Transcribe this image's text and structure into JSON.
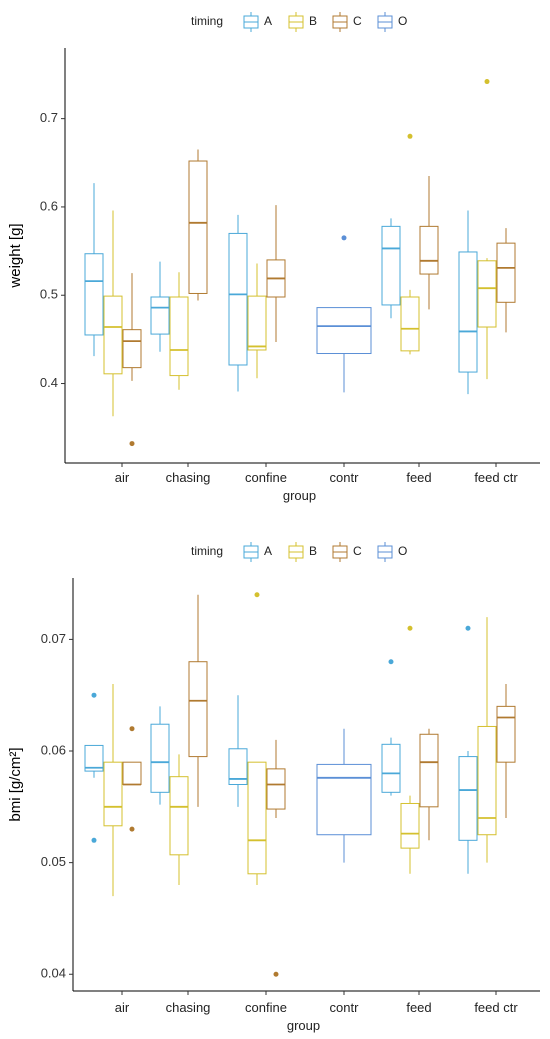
{
  "colors": {
    "A": "#4aa8d8",
    "B": "#d4c02e",
    "C": "#b07a30",
    "O": "#5b8fd6"
  },
  "legend": {
    "title": "timing",
    "keys": [
      "A",
      "B",
      "C",
      "O"
    ],
    "placement": "top"
  },
  "chart_data": [
    {
      "type": "boxplot",
      "xlabel": "group",
      "ylabel": "weight [g]",
      "ylim": [
        0.31,
        0.78
      ],
      "yticks": [
        0.4,
        0.5,
        0.6,
        0.7
      ],
      "ytick_labels": [
        "0.4",
        "0.5",
        "0.6",
        "0.7"
      ],
      "grid": false,
      "categories": [
        "air",
        "chasing",
        "confine",
        "contr",
        "feed",
        "feed ctr"
      ],
      "series": [
        {
          "name": "A",
          "boxes": [
            {
              "cat": "air",
              "lo": 0.431,
              "q1": 0.455,
              "med": 0.516,
              "q3": 0.547,
              "hi": 0.627
            },
            {
              "cat": "chasing",
              "lo": 0.436,
              "q1": 0.456,
              "med": 0.486,
              "q3": 0.498,
              "hi": 0.538
            },
            {
              "cat": "confine",
              "lo": 0.391,
              "q1": 0.421,
              "med": 0.501,
              "q3": 0.57,
              "hi": 0.591
            },
            {
              "cat": "feed",
              "lo": 0.474,
              "q1": 0.489,
              "med": 0.553,
              "q3": 0.578,
              "hi": 0.587
            },
            {
              "cat": "feed ctr",
              "lo": 0.388,
              "q1": 0.413,
              "med": 0.459,
              "q3": 0.549,
              "hi": 0.596
            }
          ]
        },
        {
          "name": "B",
          "boxes": [
            {
              "cat": "air",
              "lo": 0.363,
              "q1": 0.411,
              "med": 0.464,
              "q3": 0.499,
              "hi": 0.596
            },
            {
              "cat": "chasing",
              "lo": 0.393,
              "q1": 0.409,
              "med": 0.438,
              "q3": 0.498,
              "hi": 0.526
            },
            {
              "cat": "confine",
              "lo": 0.406,
              "q1": 0.438,
              "med": 0.442,
              "q3": 0.499,
              "hi": 0.536
            },
            {
              "cat": "feed",
              "lo": 0.433,
              "q1": 0.437,
              "med": 0.462,
              "q3": 0.498,
              "hi": 0.506,
              "outliers": [
                0.68
              ]
            },
            {
              "cat": "feed ctr",
              "lo": 0.405,
              "q1": 0.464,
              "med": 0.508,
              "q3": 0.539,
              "hi": 0.542,
              "outliers": [
                0.742
              ]
            }
          ]
        },
        {
          "name": "C",
          "boxes": [
            {
              "cat": "air",
              "lo": 0.403,
              "q1": 0.418,
              "med": 0.448,
              "q3": 0.461,
              "hi": 0.525,
              "outliers": [
                0.332
              ]
            },
            {
              "cat": "chasing",
              "lo": 0.494,
              "q1": 0.502,
              "med": 0.582,
              "q3": 0.652,
              "hi": 0.665
            },
            {
              "cat": "confine",
              "lo": 0.447,
              "q1": 0.498,
              "med": 0.519,
              "q3": 0.54,
              "hi": 0.602
            },
            {
              "cat": "feed",
              "lo": 0.484,
              "q1": 0.524,
              "med": 0.539,
              "q3": 0.578,
              "hi": 0.635
            },
            {
              "cat": "feed ctr",
              "lo": 0.458,
              "q1": 0.492,
              "med": 0.531,
              "q3": 0.559,
              "hi": 0.576
            }
          ]
        },
        {
          "name": "O",
          "boxes": [
            {
              "cat": "contr",
              "lo": 0.39,
              "q1": 0.434,
              "med": 0.465,
              "q3": 0.486,
              "hi": 0.486,
              "outliers": [
                0.565
              ]
            }
          ]
        }
      ]
    },
    {
      "type": "boxplot",
      "xlabel": "group",
      "ylabel": "bmi [g/cm²]",
      "ylim": [
        0.0385,
        0.0755
      ],
      "yticks": [
        0.04,
        0.05,
        0.06,
        0.07
      ],
      "ytick_labels": [
        "0.04",
        "0.05",
        "0.06",
        "0.07"
      ],
      "grid": false,
      "categories": [
        "air",
        "chasing",
        "confine",
        "contr",
        "feed",
        "feed ctr"
      ],
      "series": [
        {
          "name": "A",
          "boxes": [
            {
              "cat": "air",
              "lo": 0.0576,
              "q1": 0.0582,
              "med": 0.0585,
              "q3": 0.0605,
              "hi": 0.0605,
              "outliers": [
                0.065,
                0.052
              ]
            },
            {
              "cat": "chasing",
              "lo": 0.0552,
              "q1": 0.0563,
              "med": 0.059,
              "q3": 0.0624,
              "hi": 0.064
            },
            {
              "cat": "confine",
              "lo": 0.055,
              "q1": 0.057,
              "med": 0.0575,
              "q3": 0.0602,
              "hi": 0.065
            },
            {
              "cat": "feed",
              "lo": 0.056,
              "q1": 0.0563,
              "med": 0.058,
              "q3": 0.0606,
              "hi": 0.0612,
              "outliers": [
                0.068
              ]
            },
            {
              "cat": "feed ctr",
              "lo": 0.049,
              "q1": 0.052,
              "med": 0.0565,
              "q3": 0.0595,
              "hi": 0.06,
              "outliers": [
                0.071
              ]
            }
          ]
        },
        {
          "name": "B",
          "boxes": [
            {
              "cat": "air",
              "lo": 0.047,
              "q1": 0.0533,
              "med": 0.055,
              "q3": 0.059,
              "hi": 0.066
            },
            {
              "cat": "chasing",
              "lo": 0.048,
              "q1": 0.0507,
              "med": 0.055,
              "q3": 0.0577,
              "hi": 0.0597
            },
            {
              "cat": "confine",
              "lo": 0.048,
              "q1": 0.049,
              "med": 0.052,
              "q3": 0.059,
              "hi": 0.059,
              "outliers": [
                0.074
              ]
            },
            {
              "cat": "feed",
              "lo": 0.049,
              "q1": 0.0513,
              "med": 0.0526,
              "q3": 0.0553,
              "hi": 0.056,
              "outliers": [
                0.071
              ]
            },
            {
              "cat": "feed ctr",
              "lo": 0.05,
              "q1": 0.0525,
              "med": 0.054,
              "q3": 0.0622,
              "hi": 0.072
            }
          ]
        },
        {
          "name": "C",
          "boxes": [
            {
              "cat": "air",
              "lo": 0.057,
              "q1": 0.057,
              "med": 0.057,
              "q3": 0.059,
              "hi": 0.059,
              "outliers": [
                0.062,
                0.053
              ]
            },
            {
              "cat": "chasing",
              "lo": 0.055,
              "q1": 0.0595,
              "med": 0.0645,
              "q3": 0.068,
              "hi": 0.074
            },
            {
              "cat": "confine",
              "lo": 0.054,
              "q1": 0.0548,
              "med": 0.057,
              "q3": 0.0584,
              "hi": 0.061,
              "outliers": [
                0.04
              ]
            },
            {
              "cat": "feed",
              "lo": 0.052,
              "q1": 0.055,
              "med": 0.059,
              "q3": 0.0615,
              "hi": 0.062
            },
            {
              "cat": "feed ctr",
              "lo": 0.054,
              "q1": 0.059,
              "med": 0.063,
              "q3": 0.064,
              "hi": 0.066
            }
          ]
        },
        {
          "name": "O",
          "boxes": [
            {
              "cat": "contr",
              "lo": 0.05,
              "q1": 0.0525,
              "med": 0.0576,
              "q3": 0.0588,
              "hi": 0.062
            }
          ]
        }
      ]
    }
  ]
}
